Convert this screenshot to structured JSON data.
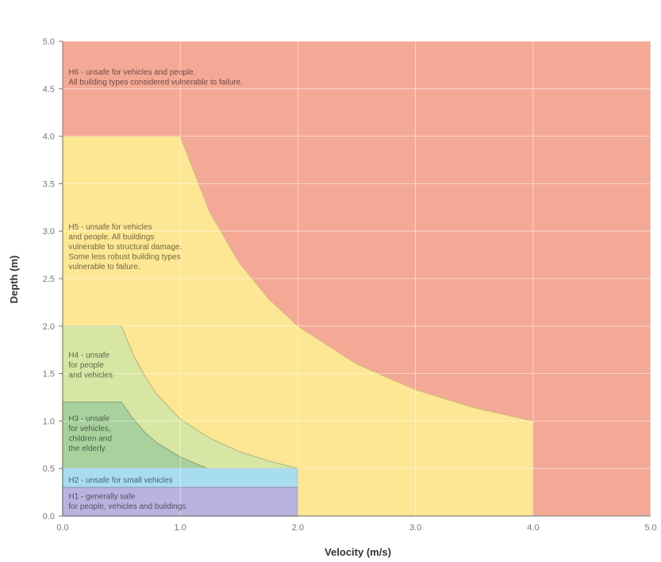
{
  "chart_data": {
    "type": "area",
    "xlabel": "Velocity (m/s)",
    "ylabel": "Depth (m)",
    "xlim": [
      0,
      5
    ],
    "ylim": [
      0,
      5
    ],
    "x_ticks": [
      "0.0",
      "1.0",
      "2.0",
      "3.0",
      "4.0",
      "5.0"
    ],
    "y_ticks": [
      "0.0",
      "0.5",
      "1.0",
      "1.5",
      "2.0",
      "2.5",
      "3.0",
      "3.5",
      "4.0",
      "4.5",
      "5.0"
    ],
    "grid": true,
    "zones": [
      {
        "id": "H6",
        "color": "#f4a996",
        "label_lines": [
          "H6 - unsafe for vehicles and people.",
          "All building types considered vulnerable to failure."
        ],
        "label_pos": [
          0.05,
          4.65
        ],
        "boundary": [
          [
            0,
            0
          ],
          [
            5,
            0
          ],
          [
            5,
            5
          ],
          [
            0,
            5
          ]
        ]
      },
      {
        "id": "H5",
        "color": "#fde794",
        "label_lines": [
          "H5 - unsafe for vehicles",
          "and people. All buildings",
          "vulnerable to structural damage.",
          "Some less robust building types",
          "vulnerable to failure."
        ],
        "label_pos": [
          0.05,
          3.02
        ],
        "boundary": [
          [
            0,
            0
          ],
          [
            0,
            4
          ],
          [
            1,
            4
          ],
          [
            1.25,
            3.2
          ],
          [
            1.5,
            2.67
          ],
          [
            1.75,
            2.29
          ],
          [
            2,
            2
          ],
          [
            2.5,
            1.6
          ],
          [
            3,
            1.33
          ],
          [
            3.5,
            1.14
          ],
          [
            4,
            1
          ],
          [
            4,
            0
          ]
        ]
      },
      {
        "id": "H4",
        "color": "#d8e6a4",
        "label_lines": [
          "H4 - unsafe",
          "for people",
          "and vehicles"
        ],
        "label_pos": [
          0.05,
          1.67
        ],
        "boundary": [
          [
            0,
            0
          ],
          [
            0,
            2
          ],
          [
            0.5,
            2
          ],
          [
            0.6,
            1.7
          ],
          [
            0.7,
            1.47
          ],
          [
            0.8,
            1.28
          ],
          [
            1,
            1.02
          ],
          [
            1.25,
            0.82
          ],
          [
            1.5,
            0.68
          ],
          [
            1.75,
            0.58
          ],
          [
            2,
            0.5
          ],
          [
            2,
            0
          ]
        ]
      },
      {
        "id": "H3",
        "color": "#a8d19d",
        "label_lines": [
          "H3 - unsafe",
          "for vehicles,",
          "children and",
          "the elderly"
        ],
        "label_pos": [
          0.05,
          1.0
        ],
        "boundary": [
          [
            0,
            0
          ],
          [
            0,
            1.2
          ],
          [
            0.5,
            1.2
          ],
          [
            0.6,
            1.02
          ],
          [
            0.7,
            0.88
          ],
          [
            0.8,
            0.77
          ],
          [
            1,
            0.62
          ],
          [
            1.25,
            0.49
          ],
          [
            1.5,
            0.41
          ],
          [
            1.75,
            0.35
          ],
          [
            2,
            0.3
          ],
          [
            2,
            0
          ]
        ]
      },
      {
        "id": "H2",
        "color": "#a7dcf1",
        "label_lines": [
          "H2 - unsafe for small vehicles"
        ],
        "label_pos": [
          0.05,
          0.35
        ],
        "boundary": [
          [
            0,
            0
          ],
          [
            0,
            0.5
          ],
          [
            2,
            0.5
          ],
          [
            2,
            0
          ]
        ]
      },
      {
        "id": "H1",
        "color": "#b8b4df",
        "label_lines": [
          "H1 - generally safe",
          "for people, vehicles and buildings"
        ],
        "label_pos": [
          0.05,
          0.18
        ],
        "boundary": [
          [
            0,
            0
          ],
          [
            0,
            0.3
          ],
          [
            2,
            0.3
          ],
          [
            2,
            0
          ]
        ]
      }
    ]
  },
  "colors": {
    "axis": "#777777",
    "grid": "#ffffff",
    "text": "#555555"
  }
}
